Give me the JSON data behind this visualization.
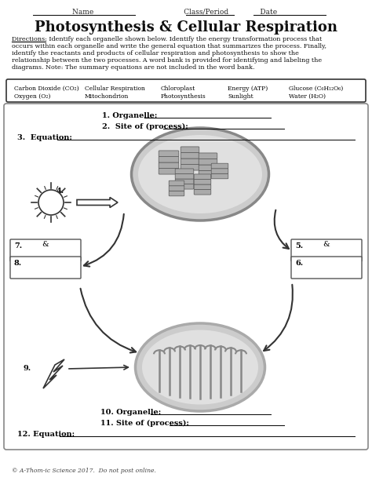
{
  "title": "Photosynthesis & Cellular Respiration",
  "bg_color": "#ffffff",
  "header_text": "Name                                        Class/Period              Date          ",
  "directions_label": "Directions",
  "directions_lines": [
    "Directions: Identify each organelle shown below. Identify the energy transformation process that",
    "occurs within each organelle and write the general equation that summarizes the process. Finally,",
    "identify the reactants and products of cellular respiration and photosynthesis to show the",
    "relationship between the two processes. A word bank is provided for identifying and labeling the",
    "diagrams. Note: The summary equations are not included in the word bank."
  ],
  "word_bank_row1": [
    "Carbon Dioxide (CO₂)",
    "Cellular Respiration",
    "Chloroplast",
    "Energy (ATP)",
    "Glucose (C₆H₁₂O₆)"
  ],
  "word_bank_row2": [
    "Oxygen (O₂)",
    "Mitochondrion",
    "Photosynthesis",
    "Sunlight",
    "Water (H₂O)"
  ],
  "label1": "1. Organelle:",
  "label2": "2.  Site of (process):",
  "label3": "3.  Equation:",
  "label4": "4.",
  "label5": "5.",
  "label6": "6.",
  "label7": "7.",
  "label8": "8.",
  "label9": "9.",
  "label10": "10. Organelle:",
  "label11": "11. Site of (process):",
  "label12": "12. Equation:",
  "footer": "© A-Thom-ic Science 2017.  Do not post online."
}
